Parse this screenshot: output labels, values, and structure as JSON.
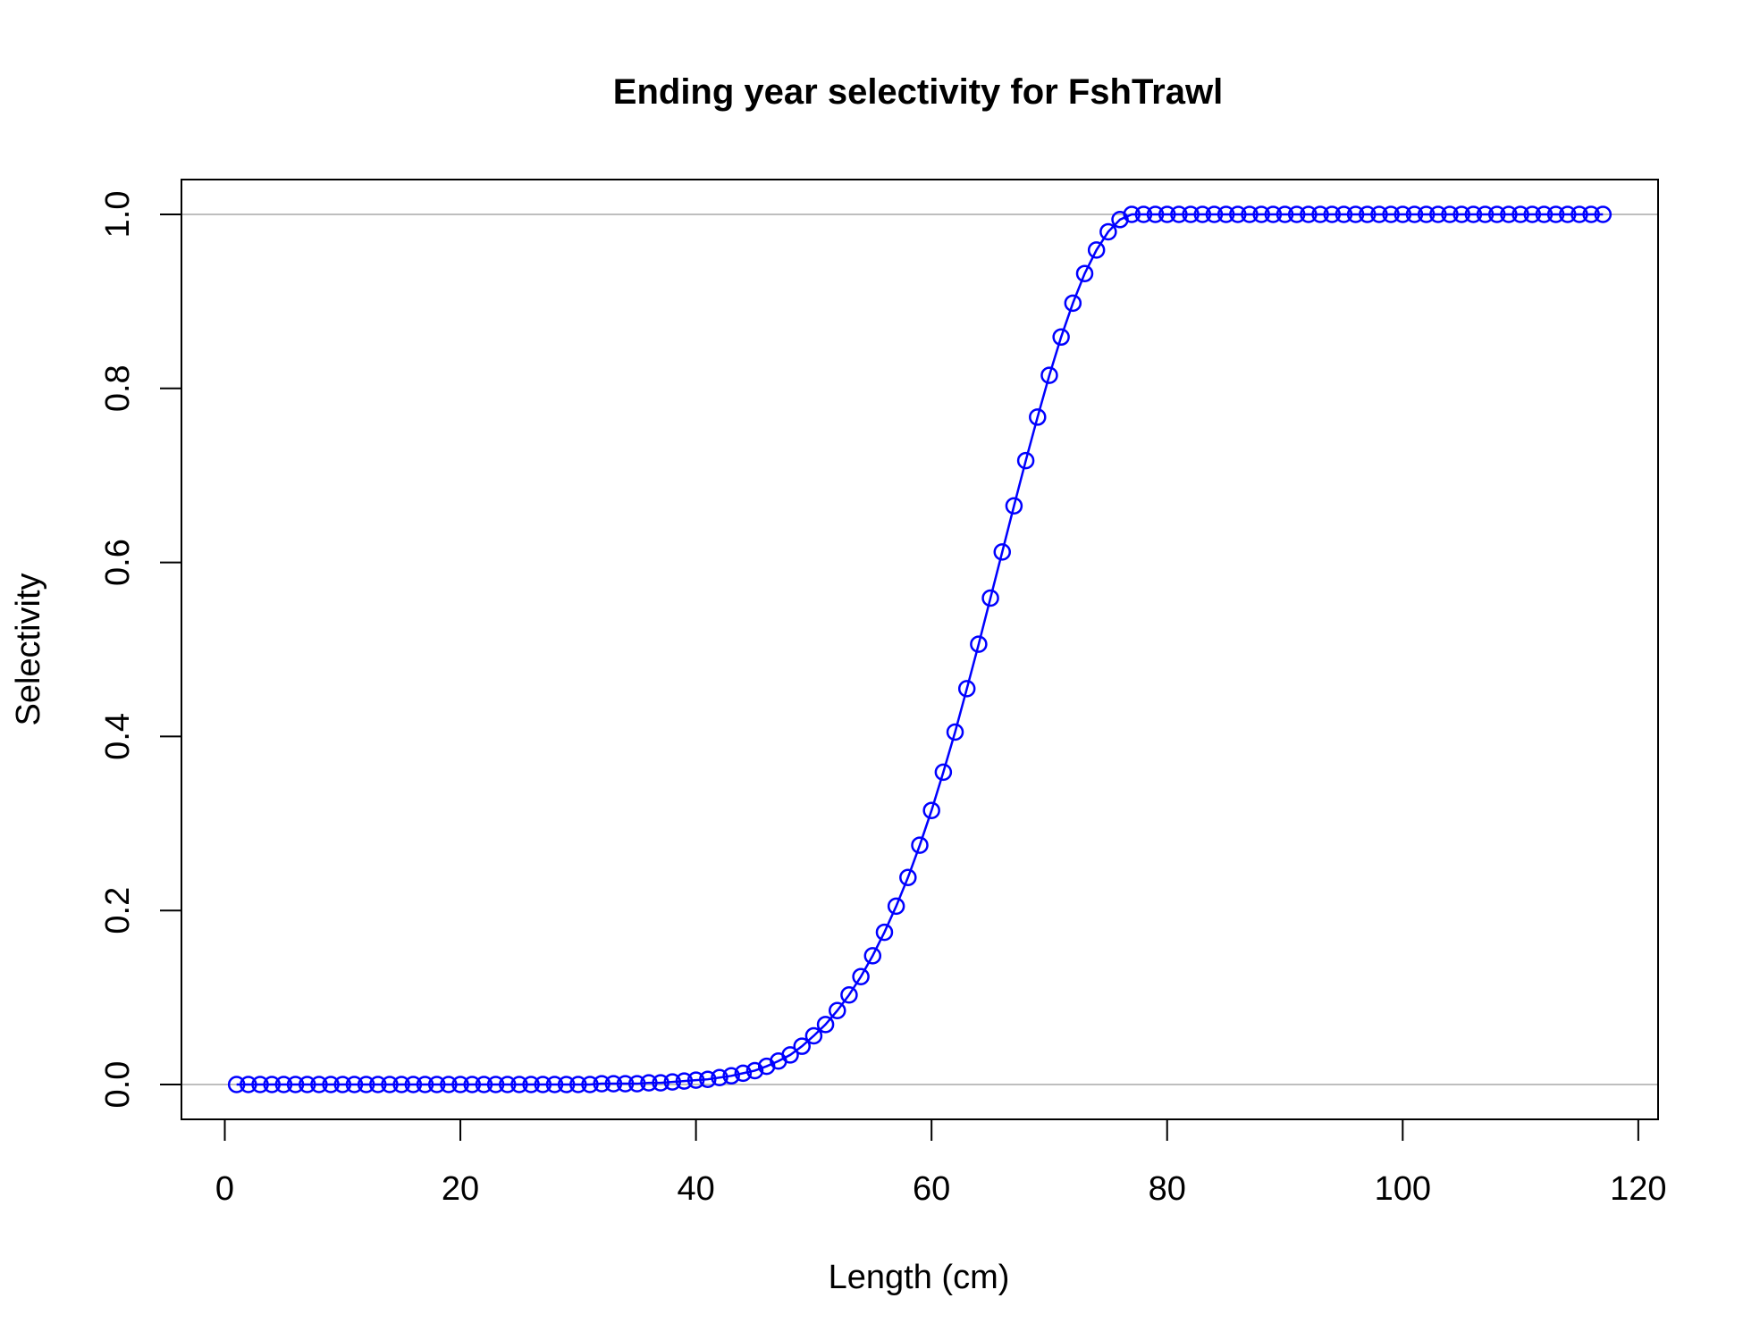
{
  "chart_data": {
    "type": "line",
    "title": "Ending year selectivity for FshTrawl",
    "xlabel": "Length (cm)",
    "ylabel": "Selectivity",
    "xlim": [
      -3.68,
      121.68
    ],
    "ylim": [
      -0.04,
      1.04
    ],
    "x_ticks": [
      0,
      20,
      40,
      60,
      80,
      100,
      120
    ],
    "x_tick_labels": [
      "0",
      "20",
      "40",
      "60",
      "80",
      "100",
      "120"
    ],
    "y_ticks": [
      0.0,
      0.2,
      0.4,
      0.6,
      0.8,
      1.0
    ],
    "y_tick_labels": [
      "0.0",
      "0.2",
      "0.4",
      "0.6",
      "0.8",
      "1.0"
    ],
    "reference_lines_y": [
      0,
      1
    ],
    "grid": false,
    "legend": "none",
    "markers": "open-circle",
    "series": [
      {
        "color": "#0000ff",
        "x": [
          1,
          2,
          3,
          4,
          5,
          6,
          7,
          8,
          9,
          10,
          11,
          12,
          13,
          14,
          15,
          16,
          17,
          18,
          19,
          20,
          21,
          22,
          23,
          24,
          25,
          26,
          27,
          28,
          29,
          30,
          31,
          32,
          33,
          34,
          35,
          36,
          37,
          38,
          39,
          40,
          41,
          42,
          43,
          44,
          45,
          46,
          47,
          48,
          49,
          50,
          51,
          52,
          53,
          54,
          55,
          56,
          57,
          58,
          59,
          60,
          61,
          62,
          63,
          64,
          65,
          66,
          67,
          68,
          69,
          70,
          71,
          72,
          73,
          74,
          75,
          76,
          77,
          78,
          79,
          80,
          81,
          82,
          83,
          84,
          85,
          86,
          87,
          88,
          89,
          90,
          91,
          92,
          93,
          94,
          95,
          96,
          97,
          98,
          99,
          100,
          101,
          102,
          103,
          104,
          105,
          106,
          107,
          108,
          109,
          110,
          111,
          112,
          113,
          114,
          115,
          116,
          117
        ],
        "y": [
          0.0,
          0.0,
          0.0,
          0.0,
          0.0,
          0.0,
          0.0,
          0.0,
          0.0,
          0.0,
          0.0,
          0.0,
          0.0,
          0.0,
          0.0,
          0.0,
          0.0,
          0.0,
          0.0,
          0.0,
          0.0,
          0.0,
          0.0,
          0.0,
          0.0,
          0.0,
          0.0,
          0.0,
          0.0,
          0.0,
          0.0,
          0.001,
          0.001,
          0.001,
          0.001,
          0.002,
          0.002,
          0.003,
          0.004,
          0.005,
          0.006,
          0.008,
          0.01,
          0.013,
          0.016,
          0.021,
          0.027,
          0.034,
          0.044,
          0.056,
          0.069,
          0.085,
          0.103,
          0.124,
          0.148,
          0.175,
          0.205,
          0.238,
          0.275,
          0.315,
          0.359,
          0.405,
          0.455,
          0.506,
          0.559,
          0.612,
          0.665,
          0.717,
          0.767,
          0.815,
          0.859,
          0.898,
          0.932,
          0.959,
          0.98,
          0.994,
          1.0,
          1.0,
          1.0,
          1.0,
          1.0,
          1.0,
          1.0,
          1.0,
          1.0,
          1.0,
          1.0,
          1.0,
          1.0,
          1.0,
          1.0,
          1.0,
          1.0,
          1.0,
          1.0,
          1.0,
          1.0,
          1.0,
          1.0,
          1.0,
          1.0,
          1.0,
          1.0,
          1.0,
          1.0,
          1.0,
          1.0,
          1.0,
          1.0,
          1.0,
          1.0,
          1.0,
          1.0,
          1.0,
          1.0,
          1.0,
          1.0
        ]
      }
    ]
  }
}
